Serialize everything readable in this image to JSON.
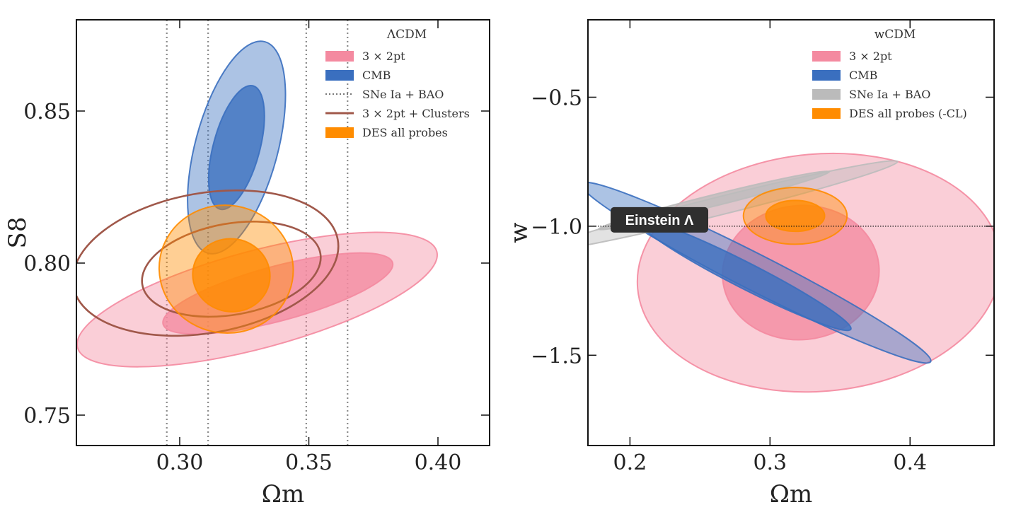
{
  "chart_data": [
    {
      "type": "contour",
      "legend_title": "ΛCDM",
      "xlabel": "Ωm",
      "ylabel": "S8",
      "xlim": [
        0.26,
        0.42
      ],
      "ylim": [
        0.74,
        0.88
      ],
      "xticks": [
        0.3,
        0.35,
        0.4
      ],
      "xtick_labels": [
        "0.30",
        "0.35",
        "0.40"
      ],
      "yticks": [
        0.75,
        0.8,
        0.85
      ],
      "ytick_labels": [
        "0.75",
        "0.80",
        "0.85"
      ],
      "vertical_lines_x": [
        0.295,
        0.311,
        0.349,
        0.365
      ],
      "series": [
        {
          "name": "3 × 2pt",
          "color": "#f48aa0",
          "style": "filled",
          "contours": [
            {
              "level": "95%",
              "center": [
                0.33,
                0.788
              ],
              "semi_axes": [
                0.072,
                0.016
              ],
              "angle_deg": 15
            },
            {
              "level": "68%",
              "center": [
                0.338,
                0.79
              ],
              "semi_axes": [
                0.046,
                0.009
              ],
              "angle_deg": 15
            }
          ]
        },
        {
          "name": "CMB",
          "color": "#3a6fbf",
          "style": "filled",
          "contours": [
            {
              "level": "95%",
              "center": [
                0.322,
                0.838
              ],
              "semi_axes": [
                0.016,
                0.036
              ],
              "angle_deg": -15
            },
            {
              "level": "68%",
              "center": [
                0.322,
                0.838
              ],
              "semi_axes": [
                0.009,
                0.021
              ],
              "angle_deg": -15
            }
          ]
        },
        {
          "name": "SNe Ia + BAO",
          "color": "#888888",
          "style": "dotted-lines"
        },
        {
          "name": "3 × 2pt + Clusters",
          "color": "#a0584a",
          "style": "outline",
          "contours": [
            {
              "level": "95%",
              "center": [
                0.31,
                0.8
              ],
              "semi_axes": [
                0.052,
                0.023
              ],
              "angle_deg": 10
            },
            {
              "level": "68%",
              "center": [
                0.32,
                0.798
              ],
              "semi_axes": [
                0.035,
                0.015
              ],
              "angle_deg": 10
            }
          ]
        },
        {
          "name": "DES all probes",
          "color": "#ff8c00",
          "style": "filled",
          "contours": [
            {
              "level": "95%",
              "center": [
                0.318,
                0.798
              ],
              "semi_axes": [
                0.026,
                0.021
              ],
              "angle_deg": -10
            },
            {
              "level": "68%",
              "center": [
                0.32,
                0.796
              ],
              "semi_axes": [
                0.015,
                0.012
              ],
              "angle_deg": -10
            }
          ]
        }
      ]
    },
    {
      "type": "contour",
      "legend_title": "wCDM",
      "xlabel": "Ωm",
      "ylabel": "w",
      "xlim": [
        0.17,
        0.46
      ],
      "ylim": [
        -1.85,
        -0.2
      ],
      "xticks": [
        0.2,
        0.3,
        0.4
      ],
      "xtick_labels": [
        "0.2",
        "0.3",
        "0.4"
      ],
      "yticks": [
        -1.5,
        -1.0,
        -0.5
      ],
      "ytick_labels": [
        "−1.5",
        "−1.0",
        "−0.5"
      ],
      "reference_line_y": -1.0,
      "annotation": "Einstein Λ",
      "series": [
        {
          "name": "3 × 2pt",
          "color": "#f48aa0",
          "style": "filled",
          "contours": [
            {
              "level": "95%",
              "center": [
                0.335,
                -1.18
              ],
              "semi_axes": [
                0.13,
                0.46
              ],
              "angle_deg": 5
            },
            {
              "level": "68%",
              "center": [
                0.322,
                -1.18
              ],
              "semi_axes": [
                0.056,
                0.26
              ],
              "angle_deg": 5
            }
          ]
        },
        {
          "name": "CMB",
          "color": "#3a6fbf",
          "style": "filled",
          "contours": [
            {
              "level": "95%",
              "center": [
                0.29,
                -1.18
              ],
              "semi_axes": [
                0.14,
                0.07
              ],
              "angle_deg": -27
            },
            {
              "level": "68%",
              "center": [
                0.282,
                -1.19
              ],
              "semi_axes": [
                0.085,
                0.05
              ],
              "angle_deg": -27
            }
          ]
        },
        {
          "name": "SNe Ia + BAO",
          "color": "#bbbbbb",
          "style": "filled",
          "contours": [
            {
              "level": "95%",
              "center": [
                0.265,
                -0.92
              ],
              "semi_axes": [
                0.13,
                0.035
              ],
              "angle_deg": 14
            },
            {
              "level": "68%",
              "center": [
                0.26,
                -0.9
              ],
              "semi_axes": [
                0.085,
                0.022
              ],
              "angle_deg": 14
            }
          ]
        },
        {
          "name": "DES all probes (-CL)",
          "color": "#ff8c00",
          "style": "filled",
          "contours": [
            {
              "level": "95%",
              "center": [
                0.318,
                -0.96
              ],
              "semi_axes": [
                0.037,
                0.11
              ],
              "angle_deg": 0
            },
            {
              "level": "68%",
              "center": [
                0.318,
                -0.96
              ],
              "semi_axes": [
                0.021,
                0.06
              ],
              "angle_deg": 0
            }
          ]
        }
      ]
    }
  ]
}
